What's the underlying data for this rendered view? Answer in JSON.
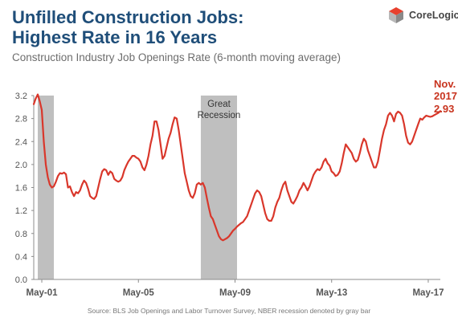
{
  "header": {
    "title_line1": "Unfilled Construction Jobs:",
    "title_line2": "Highest Rate in 16 Years",
    "subtitle": "Construction Industry Job Openings Rate (6-month moving average)"
  },
  "logo": {
    "text": "CoreLogic",
    "icon": "corelogic-cube-icon",
    "colors": [
      "#e8412e",
      "#b8b8b8",
      "#8a8a8a"
    ]
  },
  "footer": {
    "source": "Source: BLS Job Openings and Labor Turnover Survey, NBER recession denoted by gray bar"
  },
  "chart_data": {
    "type": "line",
    "title": "Unfilled Construction Jobs: Highest Rate in 16 Years",
    "subtitle": "Construction Industry Job Openings Rate (6-month moving average)",
    "x_range": [
      "2001-01",
      "2017-11"
    ],
    "ylim": [
      0.0,
      3.2
    ],
    "yticks": [
      "0.0",
      "0.4",
      "0.8",
      "1.2",
      "1.6",
      "2.0",
      "2.4",
      "2.8",
      "3.2"
    ],
    "xticks": [
      {
        "date": "2001-05",
        "label": "May-01"
      },
      {
        "date": "2005-05",
        "label": "May-05"
      },
      {
        "date": "2009-05",
        "label": "May-09"
      },
      {
        "date": "2013-05",
        "label": "May-13"
      },
      {
        "date": "2017-05",
        "label": "May-17"
      }
    ],
    "grid": false,
    "line_color": "#d9372b",
    "recession_color": "#bfbfbf",
    "recessions": [
      {
        "start": "2001-03",
        "end": "2001-11",
        "label": ""
      },
      {
        "start": "2007-12",
        "end": "2009-06",
        "label_line1": "Great",
        "label_line2": "Recession"
      }
    ],
    "annotation": {
      "line1": "Nov.",
      "line2": "2017",
      "line3": "2.93"
    },
    "series": [
      {
        "x": [
          "2001-01",
          "2001-02",
          "2001-03",
          "2001-04",
          "2001-05",
          "2001-06",
          "2001-07",
          "2001-08",
          "2001-09",
          "2001-10",
          "2001-11",
          "2001-12",
          "2002-01",
          "2002-02",
          "2002-03",
          "2002-04",
          "2002-05",
          "2002-06",
          "2002-07",
          "2002-08",
          "2002-09",
          "2002-10",
          "2002-11",
          "2002-12",
          "2003-01",
          "2003-02",
          "2003-03",
          "2003-04",
          "2003-05",
          "2003-06",
          "2003-07",
          "2003-08",
          "2003-09",
          "2003-10",
          "2003-11",
          "2003-12",
          "2004-01",
          "2004-02",
          "2004-03",
          "2004-04",
          "2004-05",
          "2004-06",
          "2004-07",
          "2004-08",
          "2004-09",
          "2004-10",
          "2004-11",
          "2004-12",
          "2005-01",
          "2005-02",
          "2005-03",
          "2005-04",
          "2005-05",
          "2005-06",
          "2005-07",
          "2005-08",
          "2005-09",
          "2005-10",
          "2005-11",
          "2005-12",
          "2006-01",
          "2006-02",
          "2006-03",
          "2006-04",
          "2006-05",
          "2006-06",
          "2006-07",
          "2006-08",
          "2006-09",
          "2006-10",
          "2006-11",
          "2006-12",
          "2007-01",
          "2007-02",
          "2007-03",
          "2007-04",
          "2007-05",
          "2007-06",
          "2007-07",
          "2007-08",
          "2007-09",
          "2007-10",
          "2007-11",
          "2007-12",
          "2008-01",
          "2008-02",
          "2008-03",
          "2008-04",
          "2008-05",
          "2008-06",
          "2008-07",
          "2008-08",
          "2008-09",
          "2008-10",
          "2008-11",
          "2008-12",
          "2009-01",
          "2009-02",
          "2009-03",
          "2009-04",
          "2009-05",
          "2009-06",
          "2009-07",
          "2009-08",
          "2009-09",
          "2009-10",
          "2009-11",
          "2009-12",
          "2010-01",
          "2010-02",
          "2010-03",
          "2010-04",
          "2010-05",
          "2010-06",
          "2010-07",
          "2010-08",
          "2010-09",
          "2010-10",
          "2010-11",
          "2010-12",
          "2011-01",
          "2011-02",
          "2011-03",
          "2011-04",
          "2011-05",
          "2011-06",
          "2011-07",
          "2011-08",
          "2011-09",
          "2011-10",
          "2011-11",
          "2011-12",
          "2012-01",
          "2012-02",
          "2012-03",
          "2012-04",
          "2012-05",
          "2012-06",
          "2012-07",
          "2012-08",
          "2012-09",
          "2012-10",
          "2012-11",
          "2012-12",
          "2013-01",
          "2013-02",
          "2013-03",
          "2013-04",
          "2013-05",
          "2013-06",
          "2013-07",
          "2013-08",
          "2013-09",
          "2013-10",
          "2013-11",
          "2013-12",
          "2014-01",
          "2014-02",
          "2014-03",
          "2014-04",
          "2014-05",
          "2014-06",
          "2014-07",
          "2014-08",
          "2014-09",
          "2014-10",
          "2014-11",
          "2014-12",
          "2015-01",
          "2015-02",
          "2015-03",
          "2015-04",
          "2015-05",
          "2015-06",
          "2015-07",
          "2015-08",
          "2015-09",
          "2015-10",
          "2015-11",
          "2015-12",
          "2016-01",
          "2016-02",
          "2016-03",
          "2016-04",
          "2016-05",
          "2016-06",
          "2016-07",
          "2016-08",
          "2016-09",
          "2016-10",
          "2016-11",
          "2016-12",
          "2017-01",
          "2017-02",
          "2017-03",
          "2017-04",
          "2017-05",
          "2017-06",
          "2017-07",
          "2017-08",
          "2017-09",
          "2017-10",
          "2017-11"
        ],
        "y": [
          3.05,
          3.15,
          3.22,
          3.1,
          2.95,
          2.4,
          2.0,
          1.78,
          1.65,
          1.6,
          1.62,
          1.7,
          1.8,
          1.85,
          1.84,
          1.86,
          1.83,
          1.6,
          1.62,
          1.52,
          1.45,
          1.52,
          1.5,
          1.55,
          1.65,
          1.72,
          1.68,
          1.58,
          1.45,
          1.42,
          1.4,
          1.45,
          1.6,
          1.75,
          1.88,
          1.92,
          1.9,
          1.82,
          1.88,
          1.85,
          1.75,
          1.72,
          1.7,
          1.72,
          1.78,
          1.9,
          1.98,
          2.05,
          2.1,
          2.15,
          2.15,
          2.12,
          2.1,
          2.05,
          1.95,
          1.9,
          2.0,
          2.15,
          2.35,
          2.5,
          2.75,
          2.75,
          2.6,
          2.35,
          2.1,
          2.15,
          2.3,
          2.45,
          2.55,
          2.7,
          2.82,
          2.8,
          2.6,
          2.35,
          2.1,
          1.85,
          1.7,
          1.55,
          1.45,
          1.42,
          1.5,
          1.65,
          1.68,
          1.65,
          1.68,
          1.6,
          1.42,
          1.25,
          1.1,
          1.05,
          0.95,
          0.85,
          0.75,
          0.7,
          0.68,
          0.7,
          0.72,
          0.75,
          0.8,
          0.85,
          0.88,
          0.92,
          0.95,
          0.98,
          1.0,
          1.05,
          1.1,
          1.2,
          1.3,
          1.4,
          1.5,
          1.55,
          1.52,
          1.45,
          1.3,
          1.15,
          1.05,
          1.02,
          1.02,
          1.1,
          1.25,
          1.35,
          1.42,
          1.55,
          1.65,
          1.7,
          1.55,
          1.45,
          1.35,
          1.32,
          1.38,
          1.45,
          1.55,
          1.6,
          1.68,
          1.62,
          1.55,
          1.62,
          1.72,
          1.82,
          1.88,
          1.92,
          1.9,
          1.95,
          2.05,
          2.1,
          2.02,
          1.98,
          1.88,
          1.85,
          1.8,
          1.82,
          1.88,
          2.02,
          2.2,
          2.35,
          2.3,
          2.25,
          2.2,
          2.1,
          2.05,
          2.08,
          2.2,
          2.35,
          2.45,
          2.4,
          2.25,
          2.15,
          2.05,
          1.95,
          1.95,
          2.05,
          2.25,
          2.45,
          2.6,
          2.7,
          2.85,
          2.9,
          2.85,
          2.75,
          2.88,
          2.92,
          2.9,
          2.85,
          2.7,
          2.5,
          2.38,
          2.35,
          2.4,
          2.5,
          2.6,
          2.7,
          2.8,
          2.78,
          2.82,
          2.85,
          2.84,
          2.83,
          2.84,
          2.86,
          2.88,
          2.9,
          2.93
        ]
      }
    ]
  }
}
